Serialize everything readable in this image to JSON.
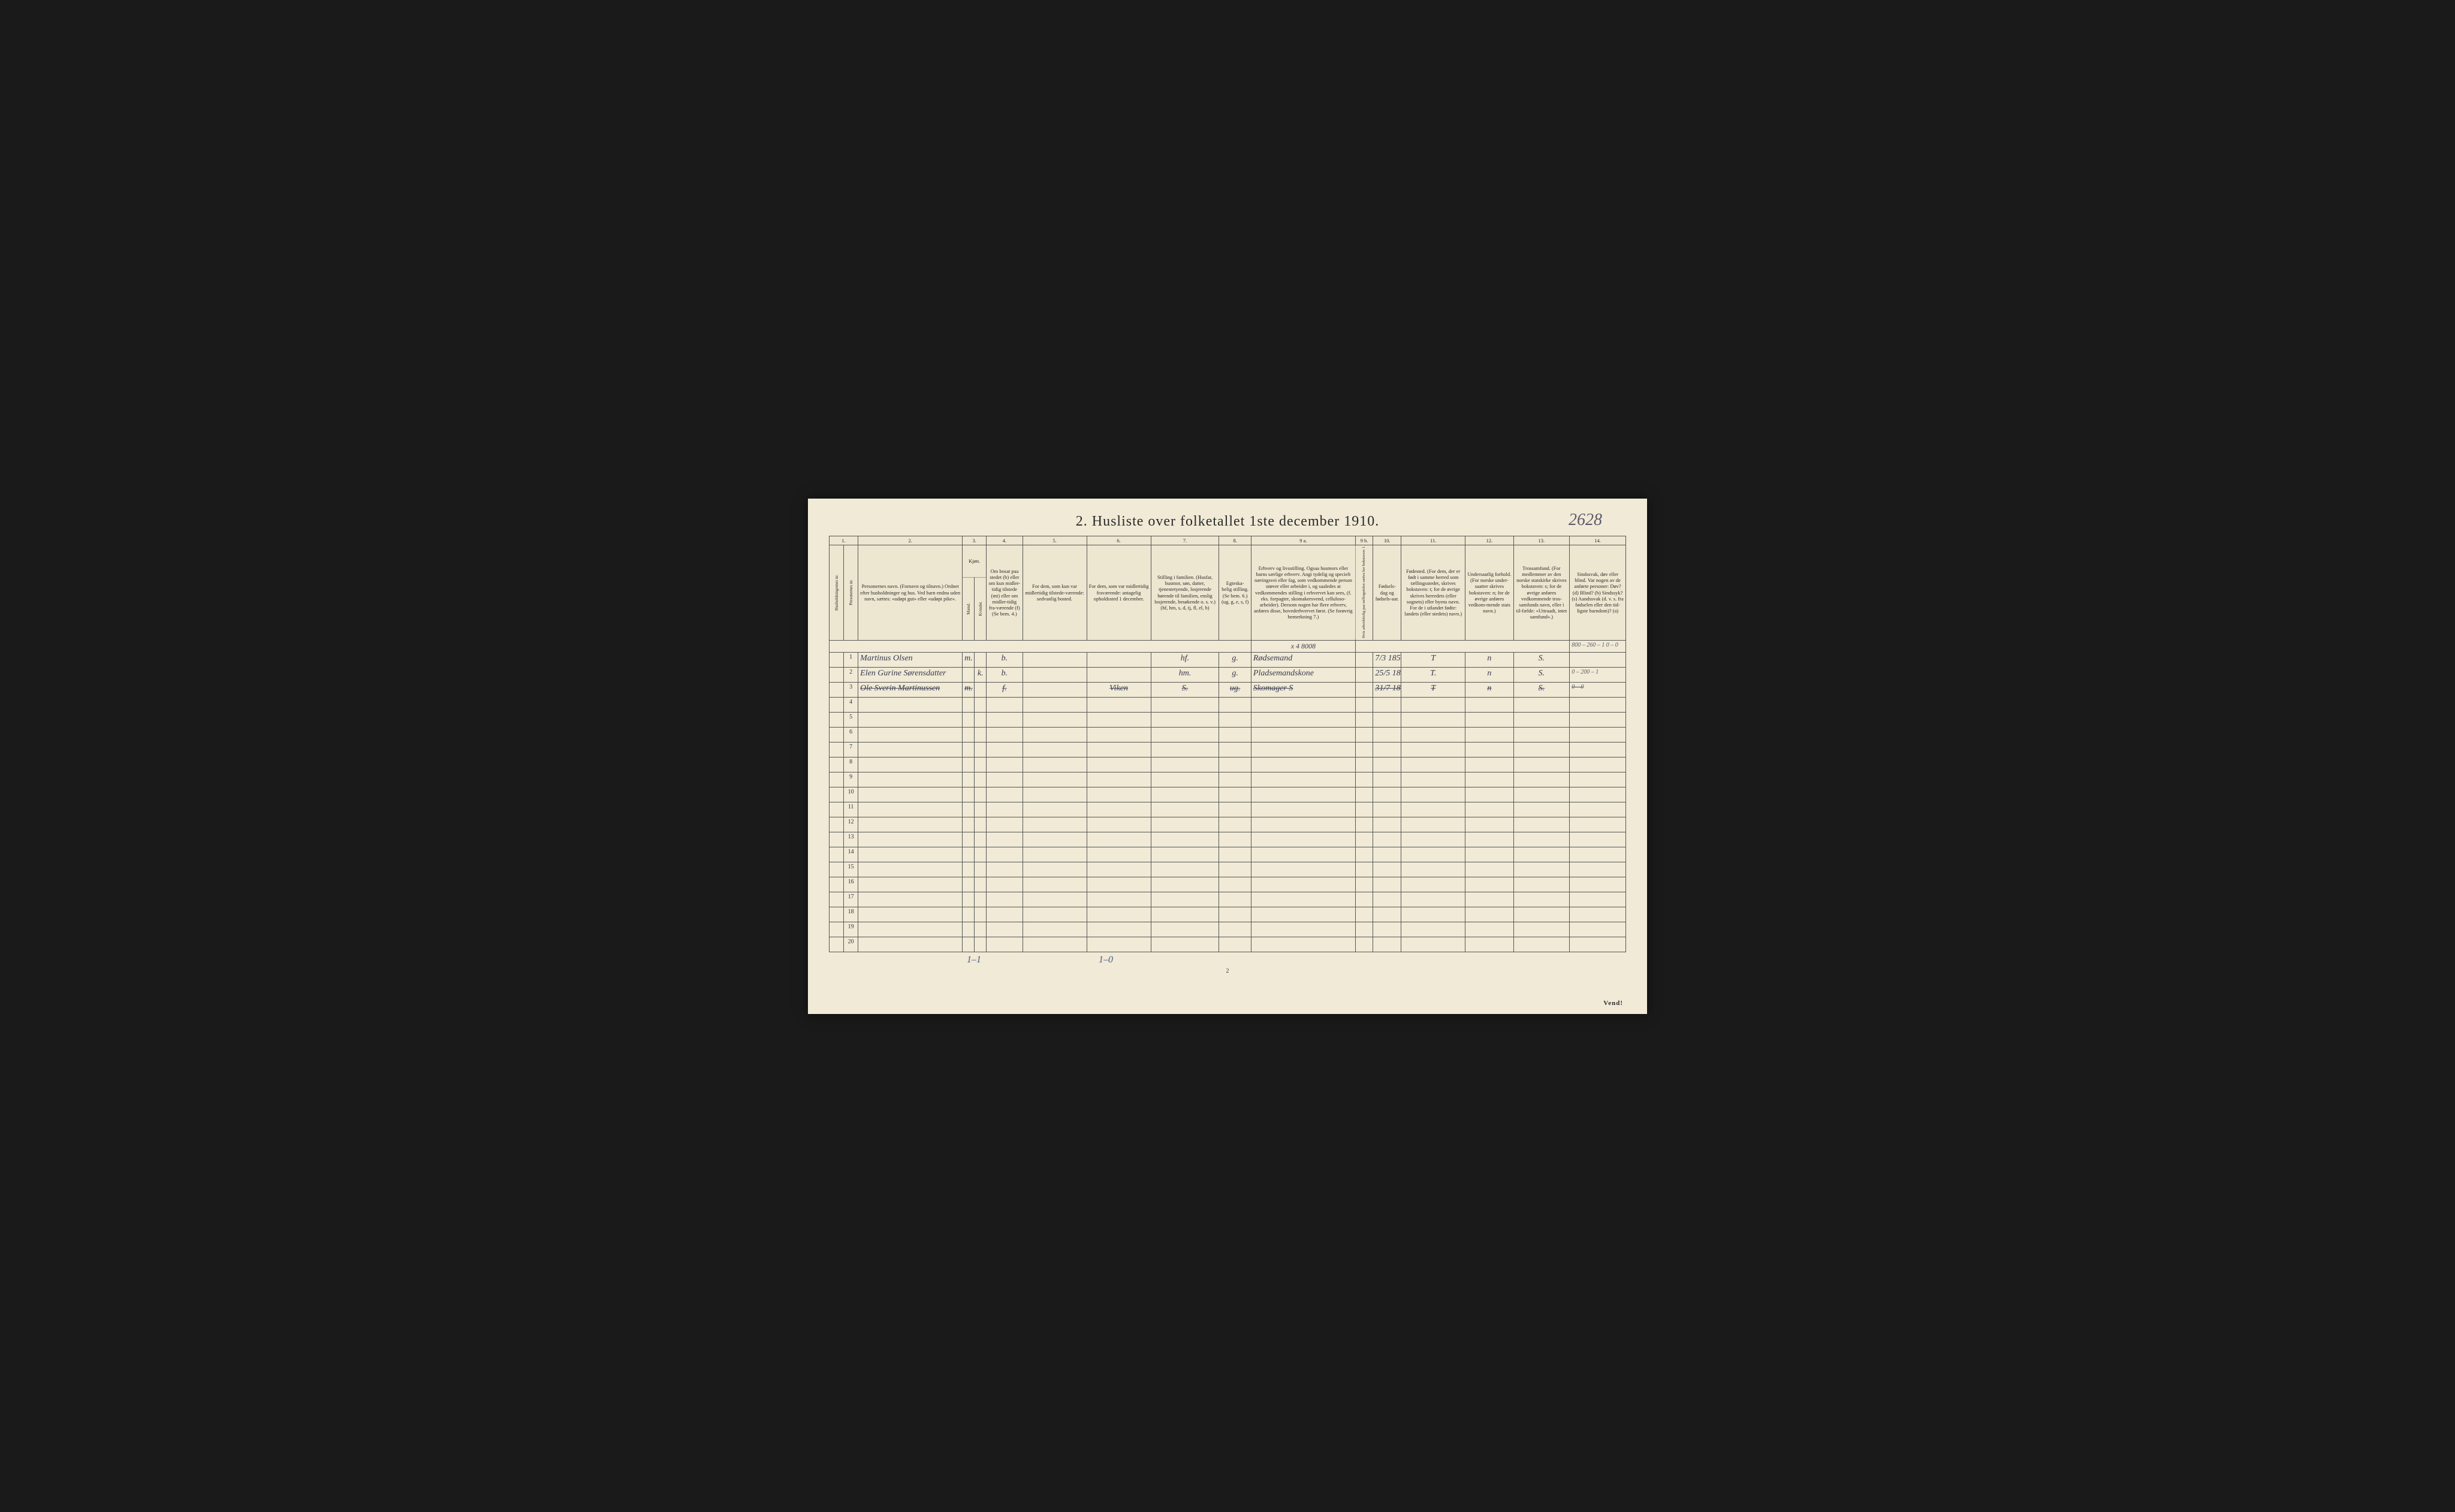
{
  "page": {
    "title": "2.  Husliste over folketallet 1ste december 1910.",
    "topright_handwritten": "2628",
    "page_number": "2",
    "vend": "Vend!",
    "bottom_note_1": "1–1",
    "bottom_note_2": "1–0"
  },
  "colors": {
    "paper": "#f0ead6",
    "ink_print": "#2a2a2a",
    "ink_hand": "#3a3a50",
    "ink_blue": "#4a5a8a",
    "border": "#555555",
    "background": "#1a1a1a"
  },
  "columns": {
    "nums": [
      "1.",
      "",
      "2.",
      "3.",
      "4.",
      "5.",
      "6.",
      "7.",
      "8.",
      "9 a.",
      "9 b.",
      "10.",
      "11.",
      "12.",
      "13.",
      "14."
    ],
    "h1": "Husholdningernes nr.",
    "h1b": "Personernes nr.",
    "h2": "Personernes navn.\n(Fornavn og tilnavn.)\nOrdnet efter husholdninger og hus.\nVed barn endnu uden navn, sættes: «udøpt gut» eller «udøpt pike».",
    "h3": "Kjøn.",
    "h3m": "Mænd.",
    "h3k": "Kvinder.",
    "h3mk": "m.  k.",
    "h4": "Om bosat paa stedet (b) eller om kun midler-tidig tilstede (mt) eller om midler-tidig fra-værende (f)\n(Se bem. 4.)",
    "h5": "For dem, som kun var midlertidig tilstede-værende:\nsedvanlig bosted.",
    "h6": "For dem, som var midlertidig fraværende:\nantagelig opholdssted 1 december.",
    "h7": "Stilling i familien.\n(Husfar, husmor, søn, datter, tjenestetyende, losjerende hørende til familien, enslig losjerende, besøkende o. s. v.)\n(hf, hm, s, d, tj, fl, el, b)",
    "h8": "Egteska-belig stilling.\n(Se bem. 6.)\n(ug, g, e, s, f)",
    "h9a": "Erhverv og livsstilling.\nOgsaa husmors eller barns særlige erhverv. Angi tydelig og specielt næringsvei eller fag, som vedkommende person utøver eller arbeider i, og saaledes at vedkommendes stilling i erhvervet kan sees, (f. eks. forpagter, skomakersvend, celluloso-arbeider). Dersom nogen har flere erhverv, anføres disse, hovederhvervet først.\n(Se forøvrig bemerkning 7.)",
    "h9b": "Hvis arbeidsledig paa tællingstiden sættes her bokstaven: l.",
    "h10": "Fødsels-dag og fødsels-aar.",
    "h11": "Fødested.\n(For dem, der er født i samme herred som tællingsstedet, skrives bokstaven: t; for de øvrige skrives herredets (eller sognets) eller byens navn. For de i utlandet fødte: landets (eller stedets) navn.)",
    "h12": "Undersaatlig forhold.\n(For norske under-saatter skrives bokstaven: n; for de øvrige anføres vedkom-mende stats navn.)",
    "h13": "Trossamfund.\n(For medlemmer av den norske statskirke skrives bokstaven: s; for de øvrige anføres vedkommende tros-samfunds navn, eller i til-fælde: «Uttraadt, intet samfund».)",
    "h14": "Sindssvak, døv eller blind.\nVar nogen av de anførte personer:\nDøv? (d)\nBlind? (b)\nSindssyk? (s)\nAandssvak (d. v. s. fra fødselen eller den tid-ligste barndom)? (a)"
  },
  "pre_row": {
    "col9a": "x 4    8008",
    "col14": "800 – 260 – 1\n0 – 0"
  },
  "rows": [
    {
      "num": "1",
      "name": "Martinus Olsen",
      "sex_m": "m.",
      "sex_k": "",
      "bosat": "b.",
      "col5": "",
      "col6": "",
      "famstilling": "hf.",
      "egtesk": "g.",
      "erhverv": "Rødsemand",
      "col9b": "",
      "fodsel": "7/3 1851",
      "fodested": "T",
      "undersaat": "n",
      "tros": "S.",
      "col14": "",
      "struck": false
    },
    {
      "num": "2",
      "name": "Elen Gurine Sørensdatter",
      "sex_m": "",
      "sex_k": "k.",
      "bosat": "b.",
      "col5": "",
      "col6": "",
      "famstilling": "hm.",
      "egtesk": "g.",
      "erhverv": "Pladsemandskone",
      "col9b": "",
      "fodsel": "25/5 1842",
      "fodested": "T.",
      "undersaat": "n",
      "tros": "S.",
      "col14": "0 – 200 – 1",
      "struck": false
    },
    {
      "num": "3",
      "name": "Ole Sverin Martinussen",
      "sex_m": "m.",
      "sex_k": "",
      "bosat": "f.",
      "col5": "",
      "col6": "Viken",
      "famstilling": "S.",
      "egtesk": "ug.",
      "erhverv": "Skomager S",
      "col9b": "",
      "fodsel": "31/7 1881",
      "fodested": "T",
      "undersaat": "n",
      "tros": "S.",
      "col14": "0 – 0",
      "struck": true
    }
  ],
  "empty_rows": [
    "4",
    "5",
    "6",
    "7",
    "8",
    "9",
    "10",
    "11",
    "12",
    "13",
    "14",
    "15",
    "16",
    "17",
    "18",
    "19",
    "20"
  ]
}
